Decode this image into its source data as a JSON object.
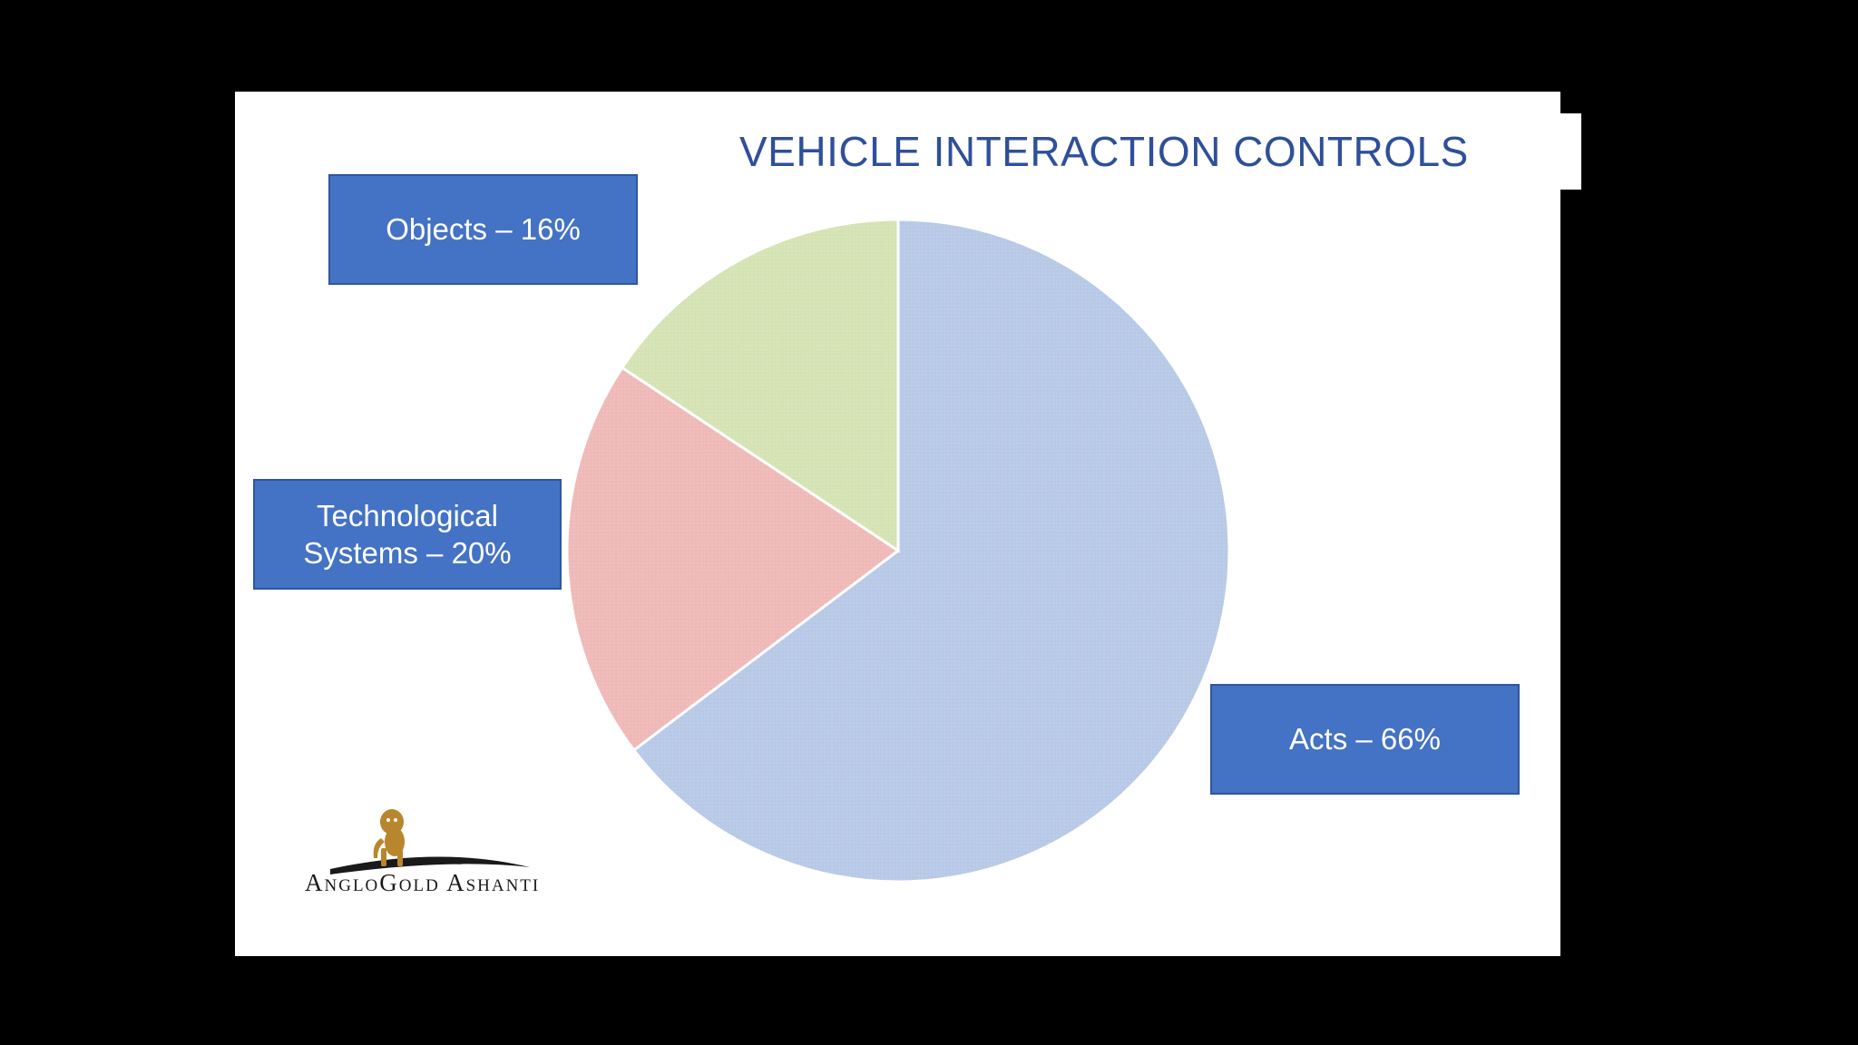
{
  "slide": {
    "title": "VEHICLE INTERACTION CONTROLS",
    "logo_text": "AngloGold Ashanti"
  },
  "chart_data": {
    "type": "pie",
    "title": "VEHICLE INTERACTION CONTROLS",
    "labels": [
      "Acts – 66%",
      "Technological Systems – 20%",
      "Objects – 16%"
    ],
    "categories": [
      "Acts",
      "Technological Systems",
      "Objects"
    ],
    "values": [
      66,
      20,
      16
    ],
    "colors": [
      "#b7c9e6",
      "#efb9b8",
      "#d5e3b4"
    ],
    "legend": "none"
  },
  "colors": {
    "background": "#000000",
    "slide": "#ffffff",
    "title": "#2f4f9a",
    "callout_fill": "#4472c4"
  },
  "icons": [
    "lion-logo-icon"
  ]
}
